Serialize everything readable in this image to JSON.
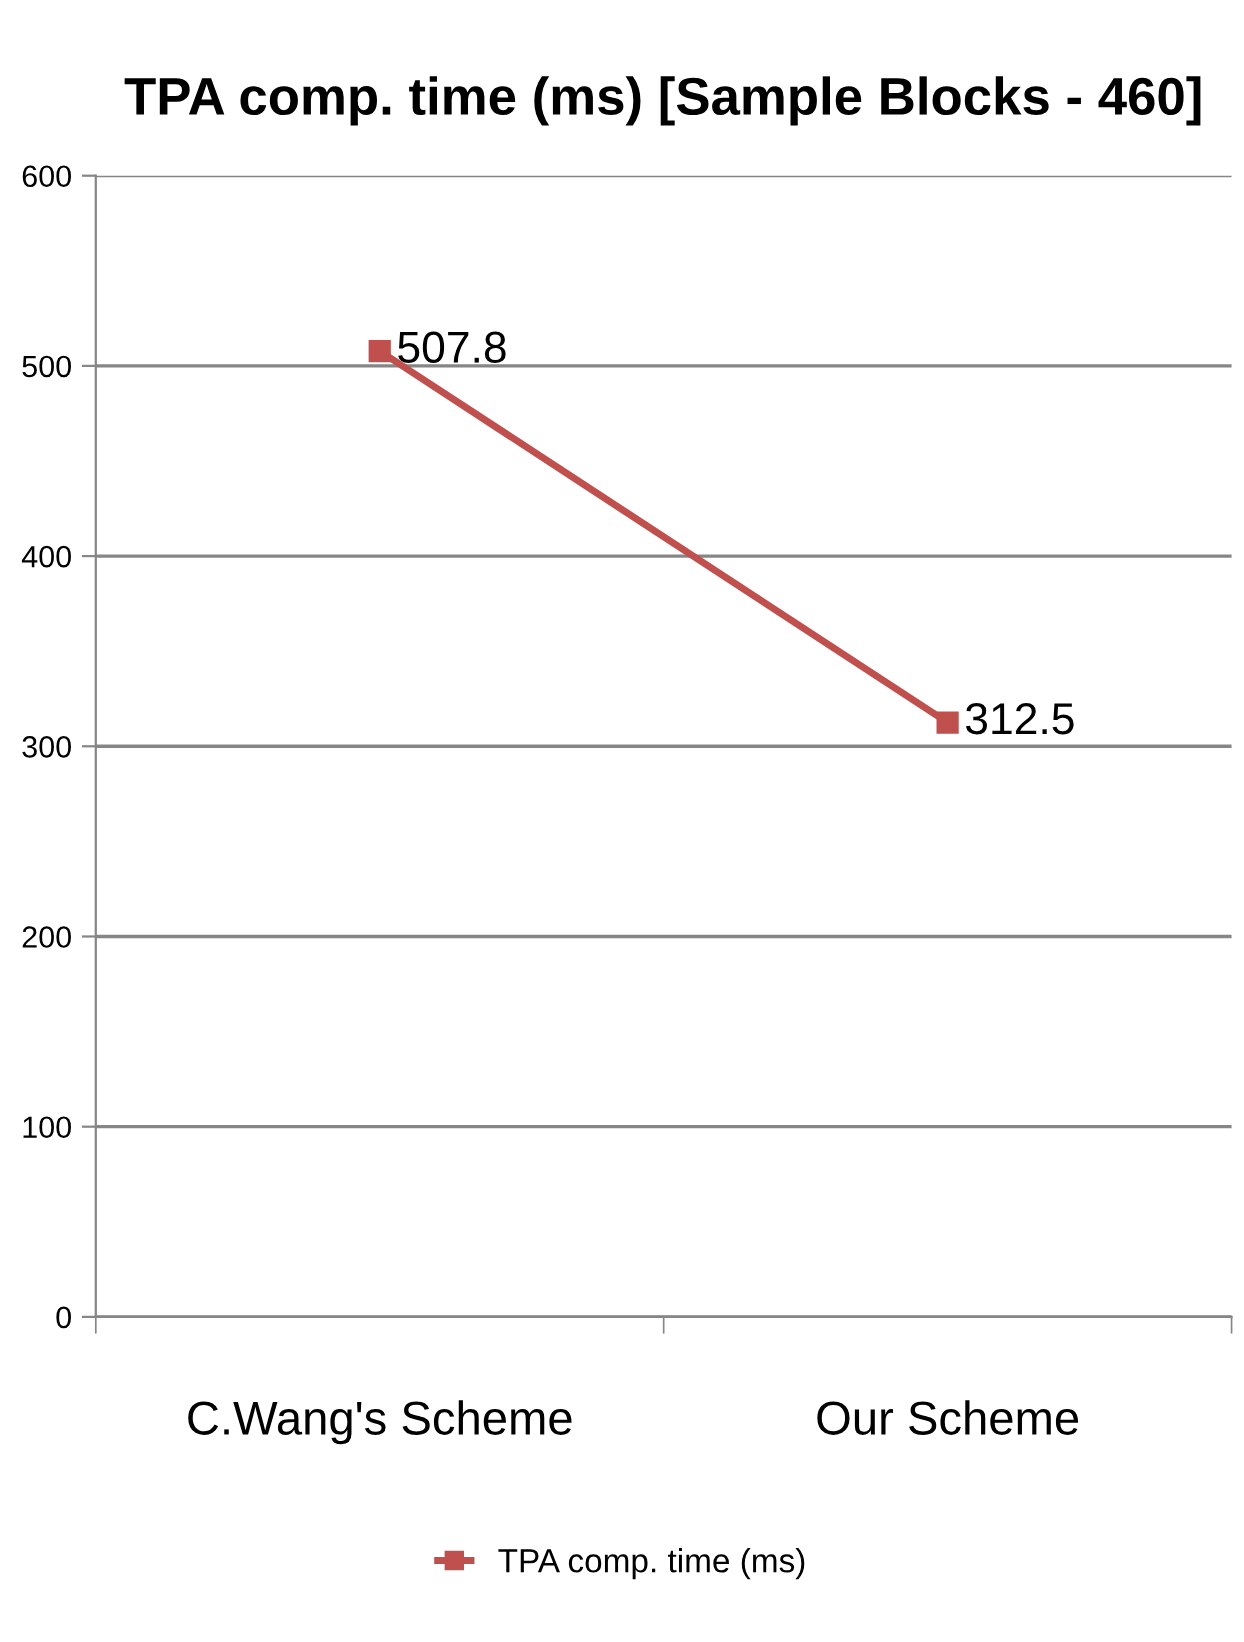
{
  "chart_data": {
    "type": "line",
    "title": "TPA comp. time (ms) [Sample Blocks - 460]",
    "categories": [
      "C.Wang's Scheme",
      "Our Scheme"
    ],
    "series": [
      {
        "name": "TPA comp. time (ms)",
        "color": "#c0504d",
        "values": [
          507.8,
          312.5
        ]
      }
    ],
    "ylim": [
      0,
      600
    ],
    "yticks": [
      0,
      100,
      200,
      300,
      400,
      500,
      600
    ],
    "grid": "y",
    "legend": "bottom",
    "marker": "square",
    "line_style": "solid",
    "data_labels": true
  }
}
